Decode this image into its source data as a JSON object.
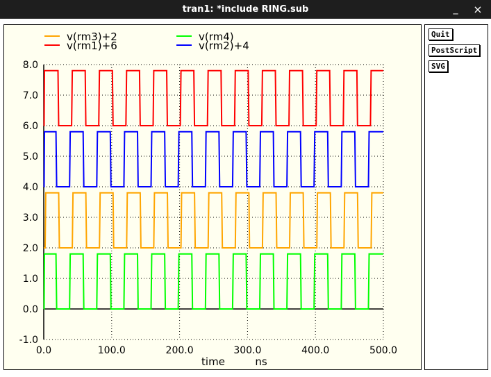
{
  "window": {
    "title": "tran1: *include RING.sub",
    "minimize_glyph": "_",
    "close_glyph": "×"
  },
  "side_panel": {
    "quit_label": "Quit",
    "postscript_label": "PostScript",
    "svg_label": "SVG"
  },
  "colors": {
    "background": "#fffff0",
    "grid": "#000000",
    "v_rm3": "#ffa500",
    "v_rm1": "#ff0000",
    "v_rm4": "#00ff00",
    "v_rm2": "#0000ff"
  },
  "chart_data": {
    "type": "line",
    "xlabel": "time",
    "xunit": "ns",
    "ylabel": "",
    "xlim": [
      0,
      500
    ],
    "ylim": [
      -1,
      8
    ],
    "x_ticks": [
      "0.0",
      "100.0",
      "200.0",
      "300.0",
      "400.0",
      "500.0"
    ],
    "y_ticks": [
      "-1.0",
      "0.0",
      "1.0",
      "2.0",
      "3.0",
      "4.0",
      "5.0",
      "6.0",
      "7.0",
      "8.0"
    ],
    "grid": true,
    "grid_style": "dotted",
    "legend_position": "top",
    "series": [
      {
        "name": "v(rm3)+2",
        "color": "#ffa500",
        "low": 2.0,
        "high": 3.8,
        "x": [
          0,
          2,
          3,
          22,
          23,
          42,
          43,
          62,
          63,
          82,
          83,
          102,
          103,
          122,
          123,
          142,
          143,
          162,
          163,
          182,
          183,
          202,
          203,
          222,
          223,
          242,
          243,
          262,
          263,
          282,
          283,
          302,
          303,
          322,
          323,
          342,
          343,
          362,
          363,
          382,
          383,
          402,
          403,
          422,
          423,
          442,
          443,
          462,
          463,
          482,
          483,
          500
        ],
        "values": [
          2.0,
          2.0,
          3.8,
          3.8,
          2.0,
          2.0,
          3.8,
          3.8,
          2.0,
          2.0,
          3.8,
          3.8,
          2.0,
          2.0,
          3.8,
          3.8,
          2.0,
          2.0,
          3.8,
          3.8,
          2.0,
          2.0,
          3.8,
          3.8,
          2.0,
          2.0,
          3.8,
          3.8,
          2.0,
          2.0,
          3.8,
          3.8,
          2.0,
          2.0,
          3.8,
          3.8,
          2.0,
          2.0,
          3.8,
          3.8,
          2.0,
          2.0,
          3.8,
          3.8,
          2.0,
          2.0,
          3.8,
          3.8,
          2.0,
          2.0,
          3.8,
          3.8
        ]
      },
      {
        "name": "v(rm1)+6",
        "color": "#ff0000",
        "low": 6.0,
        "high": 7.8,
        "x": [
          0,
          0.5,
          1,
          21,
          22,
          41,
          42,
          61,
          62,
          81,
          82,
          101,
          102,
          121,
          122,
          141,
          142,
          161,
          162,
          181,
          182,
          201,
          202,
          221,
          222,
          241,
          242,
          261,
          262,
          281,
          282,
          301,
          302,
          321,
          322,
          341,
          342,
          361,
          362,
          381,
          382,
          401,
          402,
          421,
          422,
          441,
          442,
          461,
          462,
          481,
          482,
          500
        ],
        "values": [
          6.0,
          6.0,
          7.8,
          7.8,
          6.0,
          6.0,
          7.8,
          7.8,
          6.0,
          6.0,
          7.8,
          7.8,
          6.0,
          6.0,
          7.8,
          7.8,
          6.0,
          6.0,
          7.8,
          7.8,
          6.0,
          6.0,
          7.8,
          7.8,
          6.0,
          6.0,
          7.8,
          7.8,
          6.0,
          6.0,
          7.8,
          7.8,
          6.0,
          6.0,
          7.8,
          7.8,
          6.0,
          6.0,
          7.8,
          7.8,
          6.0,
          6.0,
          7.8,
          7.8,
          6.0,
          6.0,
          7.8,
          7.8,
          6.0,
          6.0,
          7.8,
          7.8
        ]
      },
      {
        "name": "v(rm4)",
        "color": "#00ff00",
        "low": 0.0,
        "high": 1.8,
        "x": [
          0,
          0.5,
          1,
          18,
          19,
          38,
          39,
          58,
          59,
          78,
          79,
          98,
          99,
          118,
          119,
          138,
          139,
          158,
          159,
          178,
          179,
          198,
          199,
          218,
          219,
          238,
          239,
          258,
          259,
          278,
          279,
          298,
          299,
          318,
          319,
          338,
          339,
          358,
          359,
          378,
          379,
          398,
          399,
          418,
          419,
          438,
          439,
          458,
          459,
          478,
          479,
          500
        ],
        "values": [
          0.0,
          0.0,
          1.8,
          1.8,
          0.0,
          0.0,
          1.8,
          1.8,
          0.0,
          0.0,
          1.8,
          1.8,
          0.0,
          0.0,
          1.8,
          1.8,
          0.0,
          0.0,
          1.8,
          1.8,
          0.0,
          0.0,
          1.8,
          1.8,
          0.0,
          0.0,
          1.8,
          1.8,
          0.0,
          0.0,
          1.8,
          1.8,
          0.0,
          0.0,
          1.8,
          1.8,
          0.0,
          0.0,
          1.8,
          1.8,
          0.0,
          0.0,
          1.8,
          1.8,
          0.0,
          0.0,
          1.8,
          1.8,
          0.0,
          0.0,
          1.8,
          1.8
        ]
      },
      {
        "name": "v(rm2)+4",
        "color": "#0000ff",
        "low": 4.0,
        "high": 5.8,
        "x": [
          0,
          0.5,
          1,
          4,
          5,
          18,
          19,
          38,
          39,
          58,
          59,
          78,
          79,
          98,
          99,
          118,
          119,
          138,
          139,
          158,
          159,
          178,
          179,
          198,
          199,
          218,
          219,
          238,
          239,
          258,
          259,
          278,
          279,
          298,
          299,
          318,
          319,
          338,
          339,
          358,
          359,
          378,
          379,
          398,
          399,
          418,
          419,
          438,
          439,
          458,
          459,
          478,
          479,
          500
        ],
        "values": [
          4.0,
          4.0,
          5.8,
          5.8,
          5.8,
          5.8,
          4.0,
          4.0,
          5.8,
          5.8,
          4.0,
          4.0,
          5.8,
          5.8,
          4.0,
          4.0,
          5.8,
          5.8,
          4.0,
          4.0,
          5.8,
          5.8,
          4.0,
          4.0,
          5.8,
          5.8,
          4.0,
          4.0,
          5.8,
          5.8,
          4.0,
          4.0,
          5.8,
          5.8,
          4.0,
          4.0,
          5.8,
          5.8,
          4.0,
          4.0,
          5.8,
          5.8,
          4.0,
          4.0,
          5.8,
          5.8,
          4.0,
          4.0,
          5.8,
          5.8,
          4.0,
          4.0,
          5.8,
          5.8
        ]
      }
    ]
  }
}
